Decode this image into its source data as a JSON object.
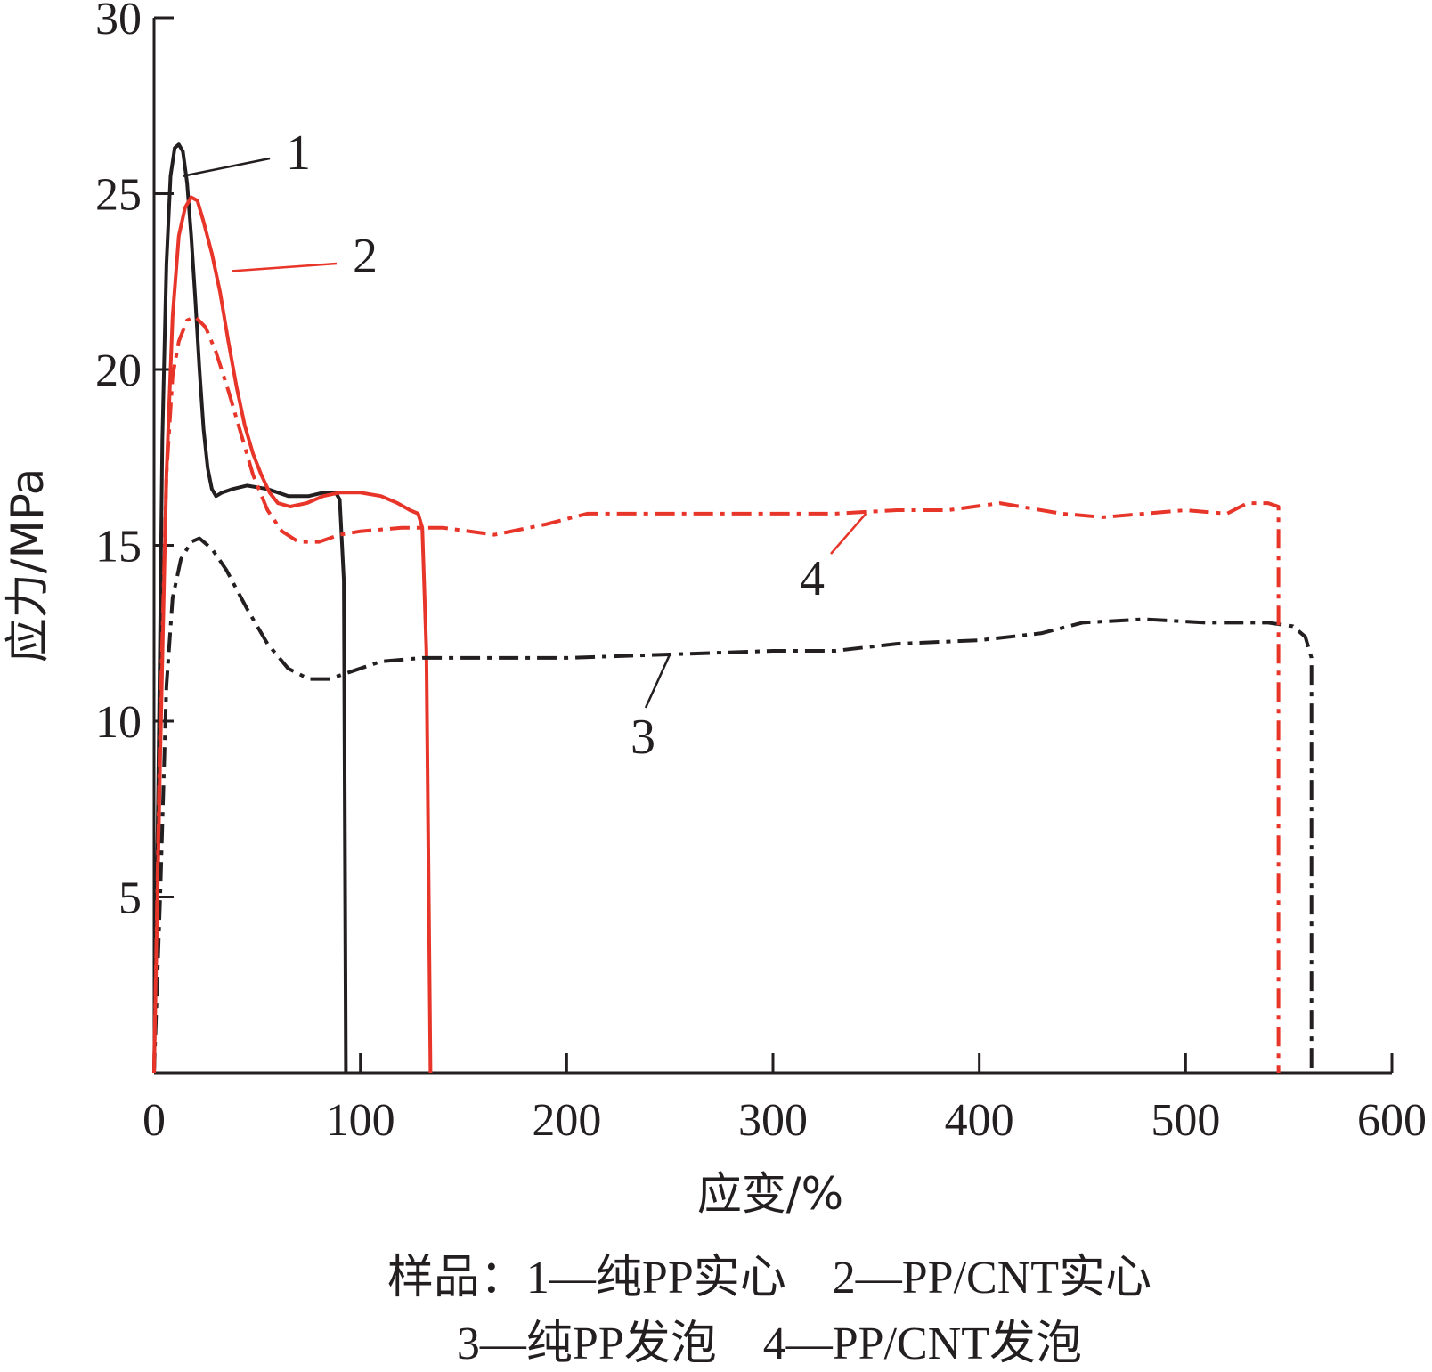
{
  "chart_data": {
    "type": "line",
    "xlabel": "应变/%",
    "ylabel": "应力/MPa",
    "xlim": [
      0,
      600
    ],
    "ylim": [
      0,
      30
    ],
    "x_ticks": [
      0,
      100,
      200,
      300,
      400,
      500,
      600
    ],
    "y_ticks": [
      5,
      10,
      15,
      20,
      25,
      30
    ],
    "grid": false,
    "legend": "none",
    "caption": [
      "样品：1—纯PP实心    2—PP/CNT实心",
      "3—纯PP发泡    4—PP/CNT发泡"
    ],
    "series": [
      {
        "name": "1",
        "color": "#231f20",
        "style": "solid",
        "points": [
          [
            0,
            0
          ],
          [
            2,
            8
          ],
          [
            4,
            18
          ],
          [
            6,
            23
          ],
          [
            8,
            25.5
          ],
          [
            10,
            26.3
          ],
          [
            12,
            26.4
          ],
          [
            14,
            26.2
          ],
          [
            16,
            25.3
          ],
          [
            18,
            23.8
          ],
          [
            20,
            22
          ],
          [
            22,
            20
          ],
          [
            24,
            18.3
          ],
          [
            26,
            17.2
          ],
          [
            28,
            16.6
          ],
          [
            30,
            16.4
          ],
          [
            33,
            16.5
          ],
          [
            38,
            16.6
          ],
          [
            45,
            16.7
          ],
          [
            55,
            16.6
          ],
          [
            65,
            16.4
          ],
          [
            75,
            16.4
          ],
          [
            82,
            16.5
          ],
          [
            88,
            16.5
          ],
          [
            90,
            16.3
          ],
          [
            92,
            14
          ],
          [
            93,
            0
          ]
        ]
      },
      {
        "name": "2",
        "color": "#e8352a",
        "style": "solid",
        "points": [
          [
            0,
            0
          ],
          [
            3,
            9
          ],
          [
            6,
            17
          ],
          [
            9,
            21.5
          ],
          [
            12,
            23.8
          ],
          [
            15,
            24.6
          ],
          [
            18,
            24.9
          ],
          [
            21,
            24.8
          ],
          [
            24,
            24.2
          ],
          [
            28,
            23.3
          ],
          [
            32,
            22.2
          ],
          [
            36,
            20.8
          ],
          [
            40,
            19.5
          ],
          [
            44,
            18.4
          ],
          [
            48,
            17.6
          ],
          [
            52,
            17
          ],
          [
            56,
            16.5
          ],
          [
            60,
            16.2
          ],
          [
            66,
            16.1
          ],
          [
            74,
            16.2
          ],
          [
            82,
            16.4
          ],
          [
            90,
            16.5
          ],
          [
            100,
            16.5
          ],
          [
            110,
            16.4
          ],
          [
            118,
            16.2
          ],
          [
            124,
            16
          ],
          [
            128,
            15.9
          ],
          [
            130,
            15.5
          ],
          [
            132,
            12
          ],
          [
            134,
            0
          ]
        ]
      },
      {
        "name": "3",
        "color": "#231f20",
        "style": "dashdot",
        "points": [
          [
            0,
            0
          ],
          [
            3,
            5
          ],
          [
            6,
            11
          ],
          [
            9,
            13.5
          ],
          [
            13,
            14.6
          ],
          [
            18,
            15.1
          ],
          [
            22,
            15.2
          ],
          [
            28,
            14.9
          ],
          [
            35,
            14.3
          ],
          [
            45,
            13.2
          ],
          [
            55,
            12.2
          ],
          [
            65,
            11.5
          ],
          [
            75,
            11.2
          ],
          [
            85,
            11.2
          ],
          [
            95,
            11.4
          ],
          [
            110,
            11.7
          ],
          [
            130,
            11.8
          ],
          [
            160,
            11.8
          ],
          [
            200,
            11.8
          ],
          [
            250,
            11.9
          ],
          [
            300,
            12
          ],
          [
            330,
            12
          ],
          [
            360,
            12.2
          ],
          [
            400,
            12.3
          ],
          [
            430,
            12.5
          ],
          [
            450,
            12.8
          ],
          [
            480,
            12.9
          ],
          [
            510,
            12.8
          ],
          [
            540,
            12.8
          ],
          [
            552,
            12.7
          ],
          [
            558,
            12.4
          ],
          [
            561,
            11.8
          ],
          [
            561,
            0
          ]
        ]
      },
      {
        "name": "4",
        "color": "#e8352a",
        "style": "dashdot",
        "points": [
          [
            0,
            0
          ],
          [
            3,
            10
          ],
          [
            6,
            17
          ],
          [
            9,
            19.8
          ],
          [
            12,
            20.8
          ],
          [
            16,
            21.4
          ],
          [
            20,
            21.5
          ],
          [
            25,
            21.2
          ],
          [
            30,
            20.5
          ],
          [
            36,
            19.4
          ],
          [
            42,
            18.2
          ],
          [
            48,
            17
          ],
          [
            55,
            16
          ],
          [
            62,
            15.4
          ],
          [
            70,
            15.1
          ],
          [
            80,
            15.1
          ],
          [
            90,
            15.3
          ],
          [
            100,
            15.4
          ],
          [
            120,
            15.5
          ],
          [
            140,
            15.5
          ],
          [
            165,
            15.3
          ],
          [
            190,
            15.6
          ],
          [
            210,
            15.9
          ],
          [
            240,
            15.9
          ],
          [
            270,
            15.9
          ],
          [
            300,
            15.9
          ],
          [
            330,
            15.9
          ],
          [
            360,
            16
          ],
          [
            385,
            16
          ],
          [
            410,
            16.2
          ],
          [
            440,
            15.9
          ],
          [
            460,
            15.8
          ],
          [
            480,
            15.9
          ],
          [
            500,
            16
          ],
          [
            520,
            15.9
          ],
          [
            530,
            16.2
          ],
          [
            540,
            16.2
          ],
          [
            545,
            16.1
          ],
          [
            545,
            0
          ]
        ]
      }
    ],
    "annotations": [
      {
        "text": "1",
        "series": "1"
      },
      {
        "text": "2",
        "series": "2"
      },
      {
        "text": "3",
        "series": "3"
      },
      {
        "text": "4",
        "series": "4"
      }
    ]
  }
}
